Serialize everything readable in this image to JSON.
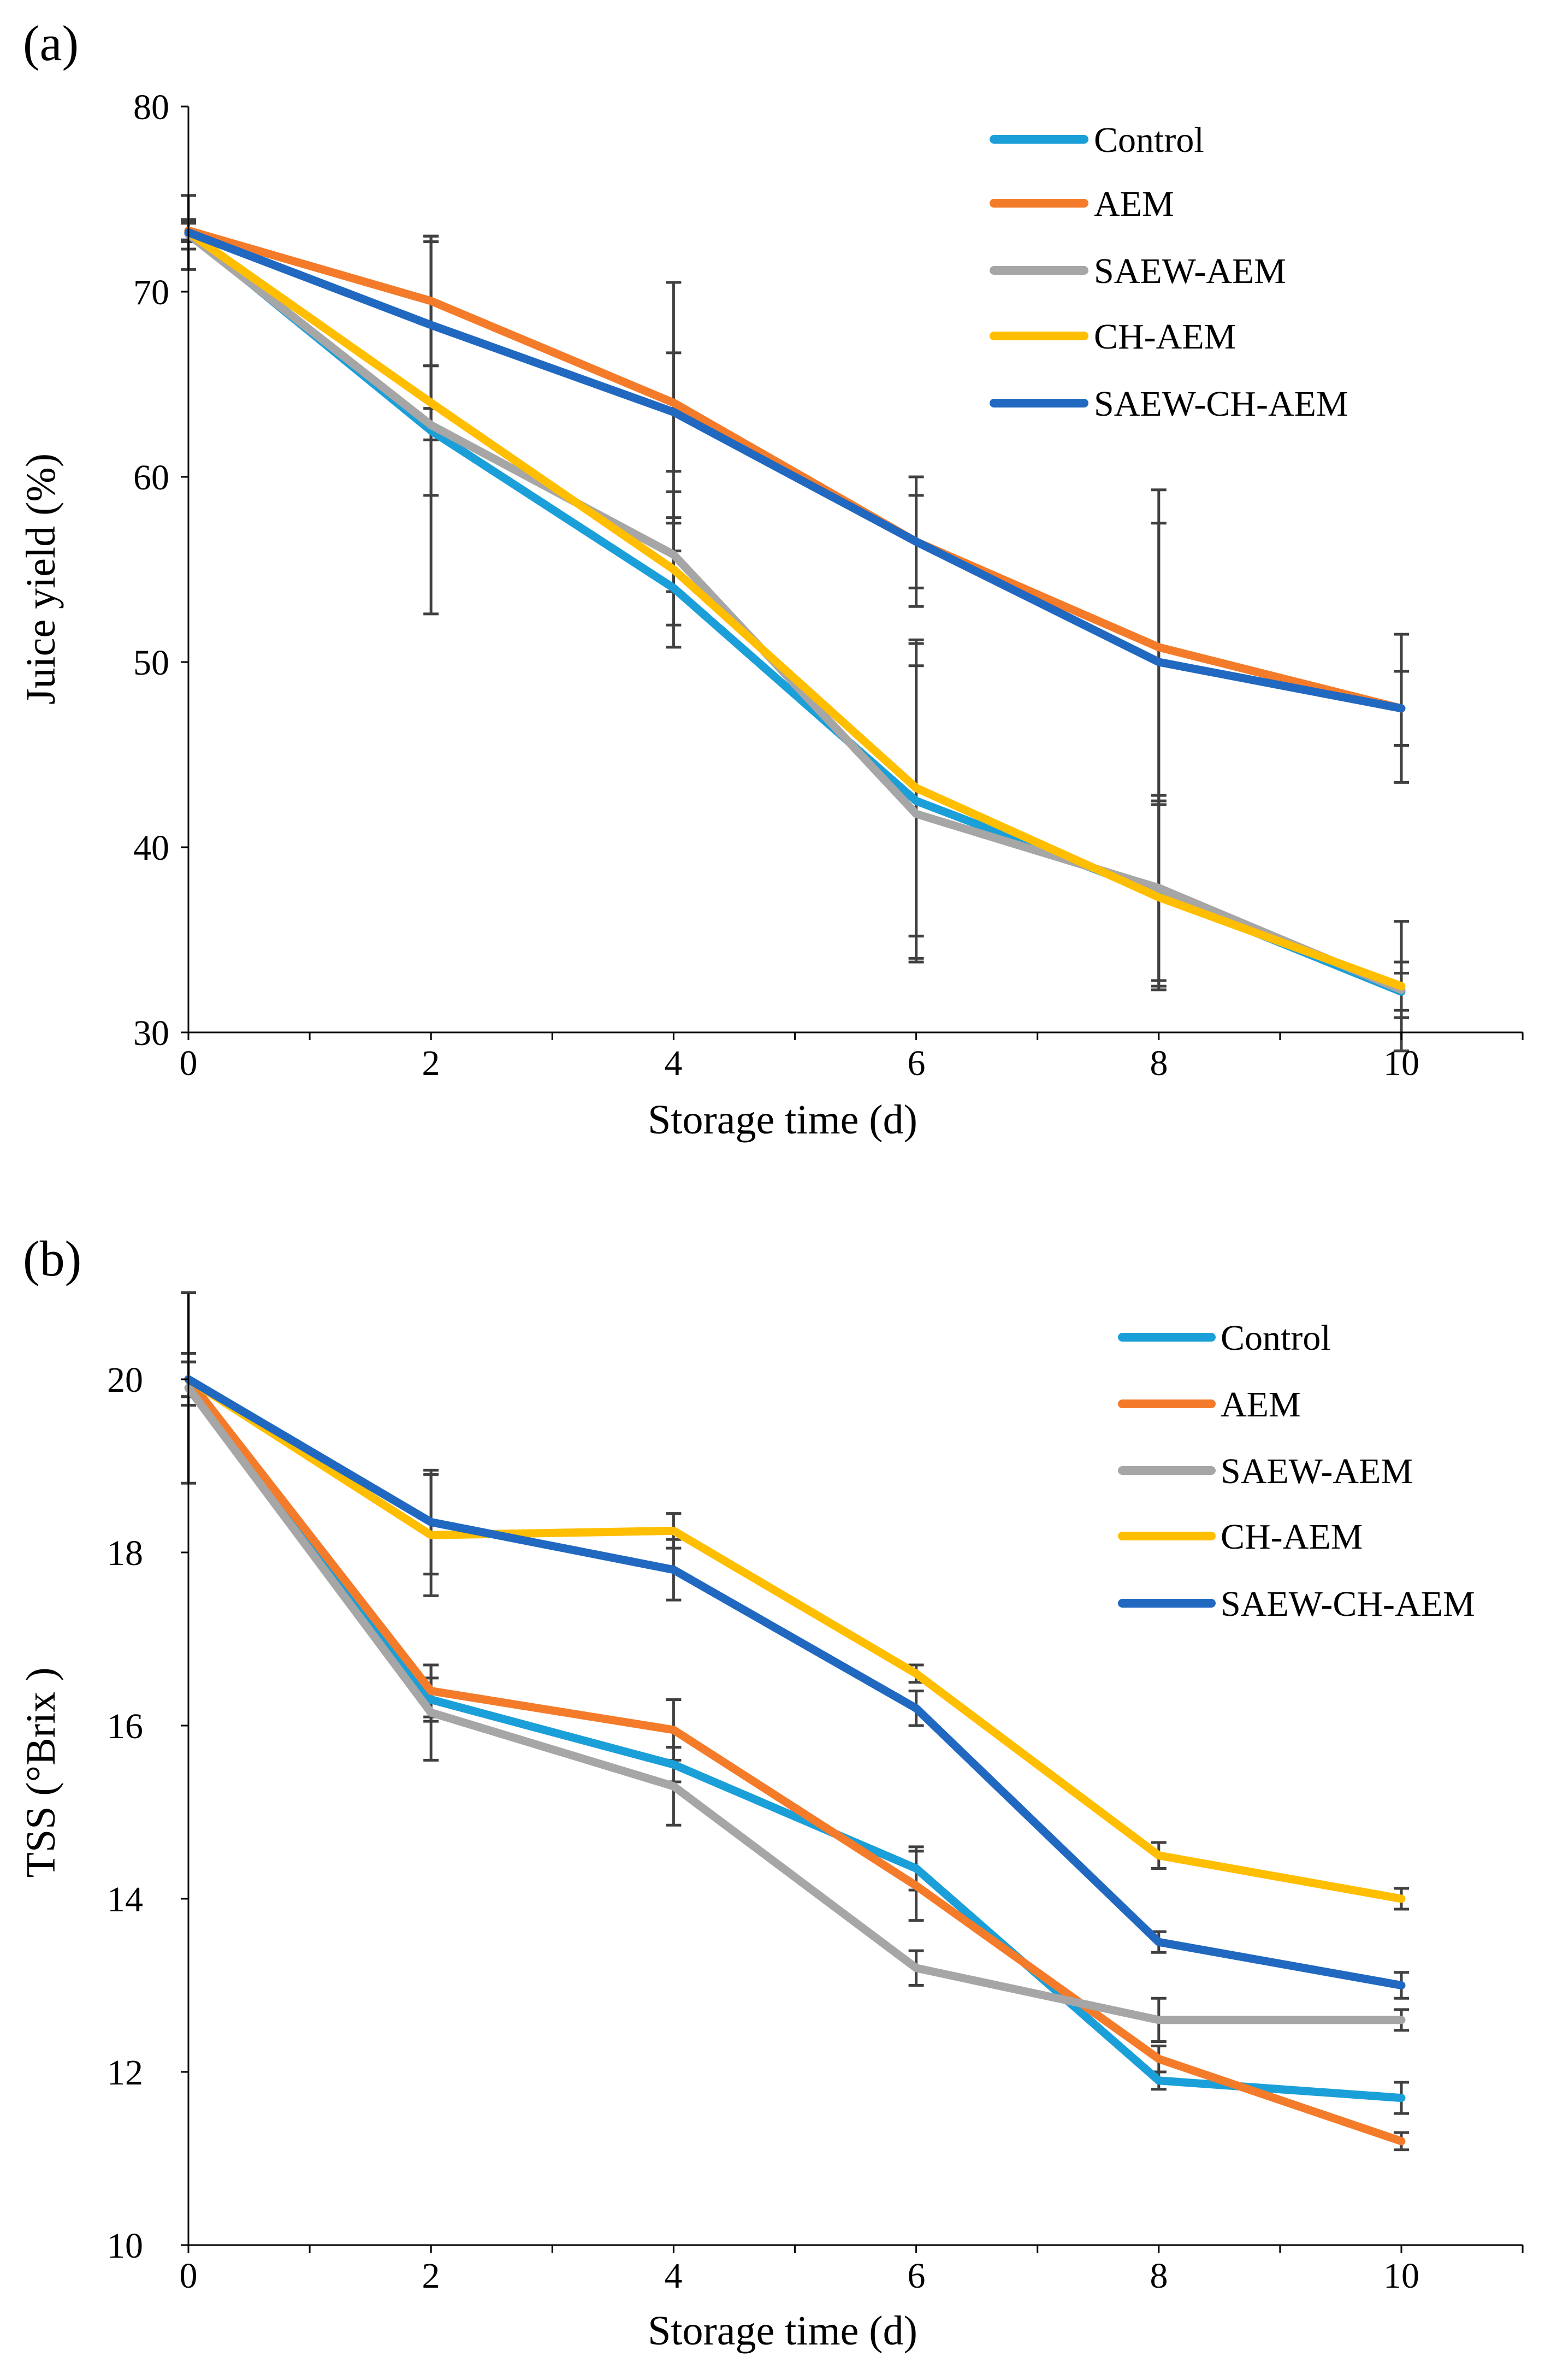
{
  "colors": {
    "Control": "#1B9FD8",
    "AEM": "#F47B2A",
    "SAEW-AEM": "#A6A6A6",
    "CH-AEM": "#FFBE00",
    "SAEW-CH-AEM": "#2168C0",
    "error_bar": "#404040",
    "axis": "#000000"
  },
  "chart_data": [
    {
      "id": "a",
      "panel_label": "(a)",
      "type": "line",
      "title": "",
      "xlabel": "Storage time (d)",
      "ylabel": "Juice yield (%)",
      "x": [
        0,
        2,
        4,
        6,
        8,
        10
      ],
      "xlim": [
        0,
        11
      ],
      "ylim": [
        30,
        80
      ],
      "xticks": [
        "0",
        "2",
        "4",
        "6",
        "8",
        "10"
      ],
      "yticks": [
        "30",
        "40",
        "50",
        "60",
        "70",
        "80"
      ],
      "legend_position": "top-right",
      "series": [
        {
          "name": "Control",
          "values": [
            73.2,
            62.5,
            54.0,
            42.5,
            37.5,
            32.2
          ],
          "errors": [
            0.5,
            3.5,
            2.0,
            8.5,
            5.0,
            1.0
          ]
        },
        {
          "name": "AEM",
          "values": [
            73.3,
            69.5,
            64.0,
            56.5,
            50.8,
            47.5
          ],
          "errors": [
            0.5,
            3.5,
            6.5,
            2.5,
            8.5,
            2.0
          ]
        },
        {
          "name": "SAEW-AEM",
          "values": [
            73.1,
            62.8,
            55.8,
            41.8,
            37.8,
            32.3
          ],
          "errors": [
            0.8,
            10.2,
            2.0,
            8.0,
            5.0,
            1.5
          ]
        },
        {
          "name": "CH-AEM",
          "values": [
            73.2,
            64.0,
            55.0,
            43.2,
            37.3,
            32.5
          ],
          "errors": [
            0.5,
            2.0,
            4.2,
            8.0,
            5.0,
            3.5
          ]
        },
        {
          "name": "SAEW-CH-AEM",
          "values": [
            73.2,
            68.2,
            63.5,
            56.5,
            50.0,
            47.5
          ],
          "errors": [
            2.0,
            4.5,
            3.2,
            3.5,
            7.5,
            4.0
          ]
        }
      ]
    },
    {
      "id": "b",
      "panel_label": "(b)",
      "type": "line",
      "title": "",
      "xlabel": "Storage time (d)",
      "ylabel": "TSS (°Brix )",
      "x": [
        0,
        2,
        4,
        6,
        8,
        10
      ],
      "xlim": [
        0,
        11
      ],
      "ylim": [
        10,
        21
      ],
      "xticks": [
        "0",
        "2",
        "4",
        "6",
        "8",
        "10"
      ],
      "yticks": [
        "10",
        "12",
        "14",
        "16",
        "18",
        "20"
      ],
      "legend_position": "top-right",
      "series": [
        {
          "name": "Control",
          "values": [
            20.0,
            16.3,
            15.55,
            14.35,
            11.9,
            11.7
          ],
          "errors": [
            0.3,
            0.25,
            0.2,
            0.25,
            0.1,
            0.18
          ]
        },
        {
          "name": "AEM",
          "values": [
            20.0,
            16.4,
            15.95,
            14.15,
            12.15,
            11.2
          ],
          "errors": [
            0.3,
            0.3,
            0.35,
            0.4,
            0.15,
            0.1
          ]
        },
        {
          "name": "SAEW-AEM",
          "values": [
            19.9,
            16.15,
            15.3,
            13.2,
            12.6,
            12.6
          ],
          "errors": [
            1.1,
            0.55,
            0.45,
            0.2,
            0.25,
            0.12
          ]
        },
        {
          "name": "CH-AEM",
          "values": [
            20.0,
            18.2,
            18.25,
            16.6,
            14.5,
            14.0
          ],
          "errors": [
            0.2,
            0.7,
            0.2,
            0.1,
            0.15,
            0.12
          ]
        },
        {
          "name": "SAEW-CH-AEM",
          "values": [
            20.0,
            18.35,
            17.8,
            16.2,
            13.5,
            13.0
          ],
          "errors": [
            0.2,
            0.6,
            0.35,
            0.2,
            0.12,
            0.15
          ]
        }
      ]
    }
  ]
}
